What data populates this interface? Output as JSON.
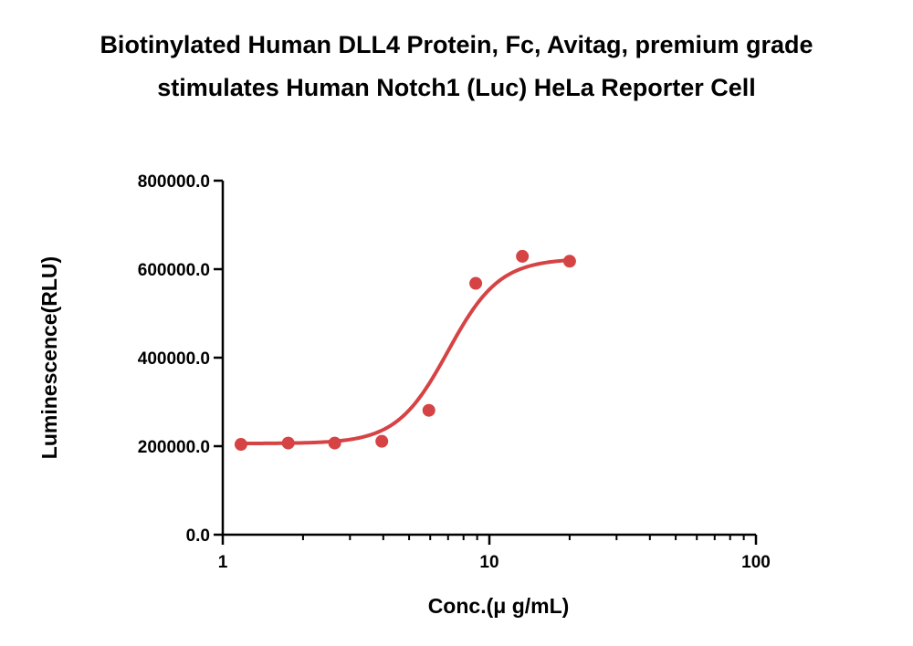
{
  "chart_data": {
    "type": "scatter",
    "title_lines": [
      "Biotinylated Human DLL4 Protein, Fc, Avitag, premium grade",
      "stimulates Human Notch1 (Luc) HeLa Reporter Cell"
    ],
    "xlabel": "Conc.(μ g/mL)",
    "ylabel": "Luminescence(RLU)",
    "x_scale": "log",
    "xlim": [
      1,
      100
    ],
    "ylim": [
      0,
      800000
    ],
    "x_ticks": [
      1,
      10,
      100
    ],
    "x_tick_labels": [
      "1",
      "10",
      "100"
    ],
    "y_ticks": [
      0,
      200000,
      400000,
      600000,
      800000
    ],
    "y_tick_labels": [
      "0.0",
      "200000.0",
      "400000.0",
      "600000.0",
      "800000.0"
    ],
    "grid": false,
    "legend": "none",
    "color": "#d64345",
    "series": [
      {
        "x": [
          1.17,
          1.76,
          2.63,
          3.95,
          5.93,
          8.89,
          13.3,
          20.0
        ],
        "y": [
          204000,
          207000,
          207000,
          211000,
          281000,
          568000,
          629000,
          618000
        ]
      }
    ],
    "fit_curve": {
      "model": "4PL",
      "bottom": 206000,
      "top": 624000,
      "ec50": 7.0,
      "hill": 4.5,
      "x_range": [
        1.17,
        20.0
      ]
    }
  }
}
